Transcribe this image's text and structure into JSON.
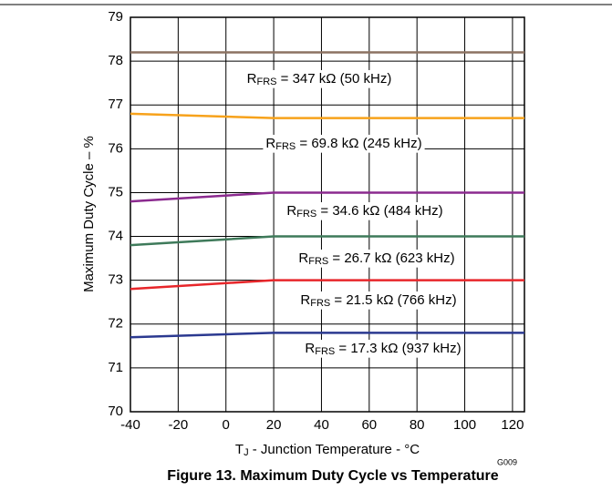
{
  "chart_data": {
    "type": "line",
    "title": "Figure 13. Maximum Duty Cycle vs Temperature",
    "xlabel": "TJ - Junction Temperature - °C",
    "ylabel": "Maximum Duty Cycle – %",
    "code": "G009",
    "x": [
      -40,
      20,
      125
    ],
    "xlim": [
      -40,
      125
    ],
    "xticks": [
      -40,
      -20,
      0,
      20,
      40,
      60,
      80,
      100,
      120
    ],
    "ylim": [
      70,
      79
    ],
    "yticks": [
      70,
      71,
      72,
      73,
      74,
      75,
      76,
      77,
      78,
      79
    ],
    "grid": true,
    "series": [
      {
        "name": "RFRS = 347 kΩ (50 kHz)",
        "color": "#8c7262",
        "values": [
          78.2,
          78.2,
          78.2
        ]
      },
      {
        "name": "RFRS = 69.8 kΩ (245 kHz)",
        "color": "#f7a21b",
        "values": [
          76.8,
          76.7,
          76.7
        ]
      },
      {
        "name": "RFRS = 34.6 kΩ (484 kHz)",
        "color": "#8b2a8f",
        "values": [
          74.8,
          75.0,
          75.0
        ]
      },
      {
        "name": "RFRS = 26.7 kΩ (623 kHz)",
        "color": "#3e7a5a",
        "values": [
          73.8,
          74.0,
          74.0
        ]
      },
      {
        "name": "RFRS = 21.5 kΩ (766 kHz)",
        "color": "#e8262a",
        "values": [
          72.8,
          73.0,
          73.0
        ]
      },
      {
        "name": "RFRS = 17.3 kΩ (937 kHz)",
        "color": "#2b3990",
        "values": [
          71.7,
          71.8,
          71.8
        ]
      }
    ]
  }
}
